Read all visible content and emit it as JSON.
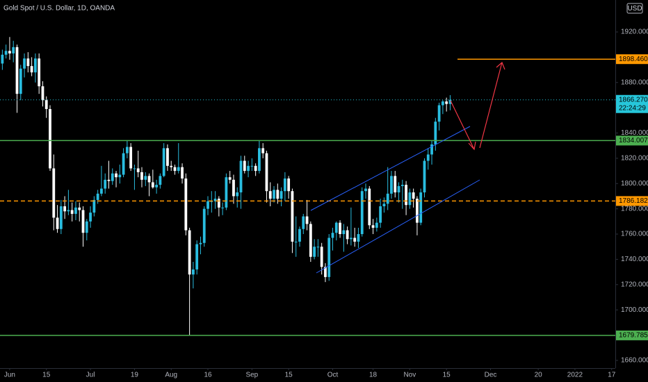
{
  "chart_data": {
    "type": "candlestick",
    "title": "Gold Spot / U.S. Dollar, 1D, OANDA",
    "currency": "USD",
    "up_color": "#29bde0",
    "down_color": "#ffffff",
    "open": [
      1895,
      1902,
      1905,
      1903,
      1908,
      1871,
      1891,
      1899,
      1893,
      1888,
      1899,
      1877,
      1866,
      1859,
      1812,
      1773,
      1764,
      1782,
      1778,
      1779,
      1776,
      1781,
      1779,
      1761,
      1770,
      1777,
      1787,
      1792,
      1796,
      1803,
      1802,
      1808,
      1805,
      1807,
      1824,
      1829,
      1812,
      1812,
      1809,
      1803,
      1806,
      1801,
      1797,
      1799,
      1806,
      1828,
      1814,
      1813,
      1810,
      1813,
      1804,
      1763,
      1728,
      1732,
      1752,
      1753,
      1780,
      1786,
      1786,
      1788,
      1781,
      1781,
      1805,
      1803,
      1790,
      1793,
      1818,
      1810,
      1814,
      1814,
      1810,
      1828,
      1824,
      1794,
      1788,
      1795,
      1788,
      1794,
      1804,
      1794,
      1754,
      1754,
      1764,
      1774,
      1768,
      1742,
      1750,
      1750,
      1734,
      1726,
      1757,
      1761,
      1769,
      1760,
      1763,
      1756,
      1757,
      1754,
      1760,
      1794,
      1796,
      1767,
      1765,
      1769,
      1782,
      1784,
      1792,
      1806,
      1793,
      1798,
      1799,
      1783,
      1793,
      1788,
      1769,
      1793,
      1818,
      1823,
      1831,
      1849,
      1862,
      1865,
      1863
    ],
    "high": [
      1906,
      1910,
      1916,
      1913,
      1910,
      1894,
      1903,
      1904,
      1900,
      1903,
      1903,
      1881,
      1869,
      1862,
      1823,
      1783,
      1787,
      1790,
      1795,
      1785,
      1786,
      1785,
      1782,
      1772,
      1782,
      1790,
      1795,
      1814,
      1808,
      1818,
      1812,
      1810,
      1815,
      1828,
      1834,
      1832,
      1815,
      1826,
      1813,
      1809,
      1808,
      1811,
      1803,
      1808,
      1832,
      1831,
      1818,
      1815,
      1832,
      1816,
      1808,
      1765,
      1738,
      1755,
      1758,
      1782,
      1790,
      1794,
      1794,
      1790,
      1785,
      1808,
      1810,
      1807,
      1797,
      1822,
      1822,
      1818,
      1820,
      1816,
      1834,
      1832,
      1826,
      1801,
      1798,
      1800,
      1797,
      1809,
      1806,
      1796,
      1774,
      1766,
      1776,
      1787,
      1770,
      1756,
      1756,
      1753,
      1737,
      1760,
      1765,
      1770,
      1771,
      1768,
      1766,
      1781,
      1765,
      1765,
      1797,
      1800,
      1798,
      1772,
      1773,
      1788,
      1789,
      1813,
      1810,
      1810,
      1801,
      1803,
      1802,
      1796,
      1796,
      1790,
      1796,
      1820,
      1828,
      1834,
      1852,
      1864,
      1866,
      1868,
      1870
    ],
    "low": [
      1890,
      1899,
      1898,
      1896,
      1856,
      1866,
      1884,
      1888,
      1885,
      1880,
      1871,
      1861,
      1852,
      1810,
      1763,
      1761,
      1760,
      1772,
      1775,
      1770,
      1771,
      1770,
      1750,
      1755,
      1765,
      1774,
      1784,
      1790,
      1792,
      1796,
      1799,
      1797,
      1800,
      1805,
      1820,
      1810,
      1795,
      1805,
      1797,
      1798,
      1790,
      1796,
      1792,
      1796,
      1805,
      1810,
      1810,
      1807,
      1808,
      1800,
      1759,
      1680,
      1717,
      1728,
      1744,
      1750,
      1775,
      1777,
      1780,
      1774,
      1775,
      1779,
      1800,
      1784,
      1781,
      1780,
      1808,
      1805,
      1810,
      1806,
      1808,
      1820,
      1785,
      1782,
      1785,
      1784,
      1782,
      1786,
      1788,
      1745,
      1742,
      1750,
      1760,
      1763,
      1738,
      1740,
      1742,
      1728,
      1722,
      1723,
      1747,
      1755,
      1757,
      1746,
      1752,
      1751,
      1750,
      1749,
      1758,
      1788,
      1764,
      1760,
      1762,
      1765,
      1777,
      1779,
      1788,
      1789,
      1785,
      1780,
      1775,
      1780,
      1781,
      1759,
      1767,
      1789,
      1811,
      1815,
      1826,
      1842,
      1855,
      1857,
      1858
    ],
    "close": [
      1902,
      1905,
      1903,
      1908,
      1871,
      1891,
      1899,
      1893,
      1888,
      1899,
      1877,
      1866,
      1859,
      1812,
      1773,
      1764,
      1782,
      1778,
      1779,
      1776,
      1781,
      1779,
      1761,
      1770,
      1777,
      1787,
      1792,
      1796,
      1803,
      1802,
      1808,
      1805,
      1807,
      1824,
      1829,
      1812,
      1812,
      1809,
      1803,
      1806,
      1801,
      1797,
      1799,
      1806,
      1828,
      1814,
      1813,
      1810,
      1813,
      1804,
      1763,
      1728,
      1732,
      1752,
      1753,
      1780,
      1786,
      1786,
      1788,
      1781,
      1781,
      1805,
      1803,
      1790,
      1793,
      1818,
      1810,
      1814,
      1814,
      1810,
      1828,
      1824,
      1794,
      1788,
      1795,
      1788,
      1794,
      1804,
      1794,
      1754,
      1754,
      1764,
      1774,
      1768,
      1742,
      1750,
      1750,
      1734,
      1726,
      1757,
      1761,
      1769,
      1760,
      1763,
      1756,
      1757,
      1754,
      1760,
      1794,
      1796,
      1767,
      1765,
      1769,
      1782,
      1784,
      1792,
      1806,
      1793,
      1798,
      1799,
      1783,
      1793,
      1788,
      1769,
      1793,
      1818,
      1823,
      1831,
      1849,
      1862,
      1865,
      1863,
      1866.27
    ],
    "xlim": [
      -0.64,
      167
    ],
    "xticks": [
      {
        "value": 2,
        "label": "Jun"
      },
      {
        "value": 12,
        "label": "15"
      },
      {
        "value": 24,
        "label": "Jul"
      },
      {
        "value": 36,
        "label": "19"
      },
      {
        "value": 46,
        "label": "Aug"
      },
      {
        "value": 56,
        "label": "16"
      },
      {
        "value": 68,
        "label": "Sep"
      },
      {
        "value": 78,
        "label": "15"
      },
      {
        "value": 90,
        "label": "Oct"
      },
      {
        "value": 101,
        "label": "18"
      },
      {
        "value": 111,
        "label": "Nov"
      },
      {
        "value": 121,
        "label": "15"
      },
      {
        "value": 133,
        "label": "Dec"
      },
      {
        "value": 146,
        "label": "20"
      },
      {
        "value": 156,
        "label": "2022"
      },
      {
        "value": 166,
        "label": "17"
      }
    ],
    "ylim": [
      1653.9,
      1945.3
    ],
    "yticks": [
      {
        "value": 1920,
        "label": "1920.000"
      },
      {
        "value": 1880,
        "label": "1880.000"
      },
      {
        "value": 1840,
        "label": "1840.000"
      },
      {
        "value": 1820,
        "label": "1820.000"
      },
      {
        "value": 1800,
        "label": "1800.000"
      },
      {
        "value": 1780,
        "label": "1780.000"
      },
      {
        "value": 1760,
        "label": "1760.000"
      },
      {
        "value": 1740,
        "label": "1740.000"
      },
      {
        "value": 1720,
        "label": "1720.000"
      },
      {
        "value": 1700,
        "label": "1700.000"
      },
      {
        "value": 1660,
        "label": "1660.000"
      }
    ],
    "levels": [
      {
        "value": 1898.46,
        "label": "1898.460",
        "color": "#ff9800",
        "style": "ray"
      },
      {
        "value": 1834.007,
        "label": "1834.007",
        "color": "#4caf50",
        "style": "solid"
      },
      {
        "value": 1786.182,
        "label": "1786.182",
        "color": "#ff9800",
        "style": "dashed"
      },
      {
        "value": 1679.785,
        "label": "1679.785",
        "color": "#4caf50",
        "style": "solid"
      }
    ],
    "last_price": {
      "value": 1866.27,
      "label": "1866.270",
      "color": "#26c6da"
    },
    "countdown": "22:24:29"
  }
}
